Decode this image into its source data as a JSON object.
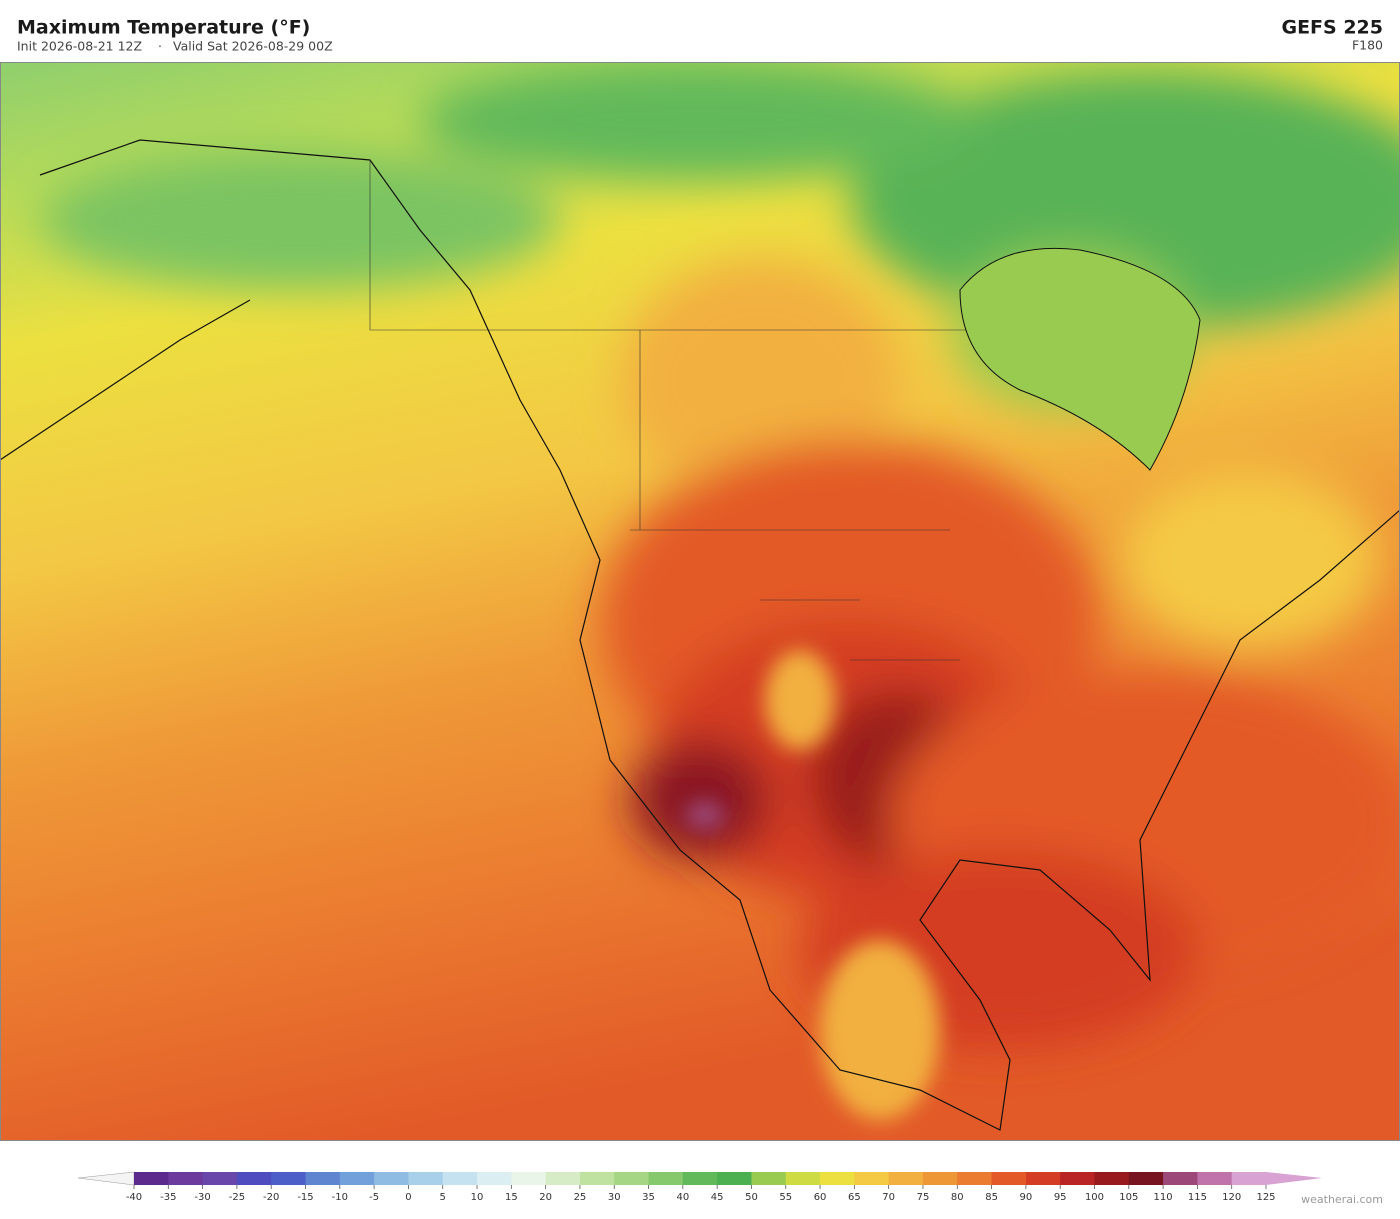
{
  "header": {
    "title": "Maximum Temperature  (°F)",
    "init": "Init 2026-08-21 12Z",
    "separator": "·",
    "valid": "Valid Sat 2026-08-29 00Z",
    "model": "GEFS  225",
    "forecast_hour": "F180"
  },
  "colorbar": {
    "ticks": [
      -40,
      -35,
      -30,
      -25,
      -20,
      -15,
      -10,
      -5,
      0,
      5,
      10,
      15,
      20,
      25,
      30,
      35,
      40,
      45,
      50,
      55,
      60,
      65,
      70,
      75,
      80,
      85,
      90,
      95,
      100,
      105,
      110,
      115,
      120,
      125
    ],
    "colors": [
      "#5b2a8c",
      "#6c3a9c",
      "#6846aa",
      "#4f4cc0",
      "#4c5ec8",
      "#5f84d0",
      "#72a0da",
      "#8ebce2",
      "#a8d0ea",
      "#c4e2f0",
      "#dbeef2",
      "#e8f5e8",
      "#d6ecc6",
      "#c0e2a0",
      "#a4d684",
      "#86c86c",
      "#62b95a",
      "#4caf50",
      "#98cb50",
      "#cedb42",
      "#ece040",
      "#f4c944",
      "#f2b040",
      "#ee9736",
      "#eb7b30",
      "#e35a28",
      "#d43c24",
      "#b92524",
      "#991a1c",
      "#781420",
      "#9c4878",
      "#c072aa",
      "#d8a2d2"
    ]
  },
  "credit": "weatherai.com"
}
